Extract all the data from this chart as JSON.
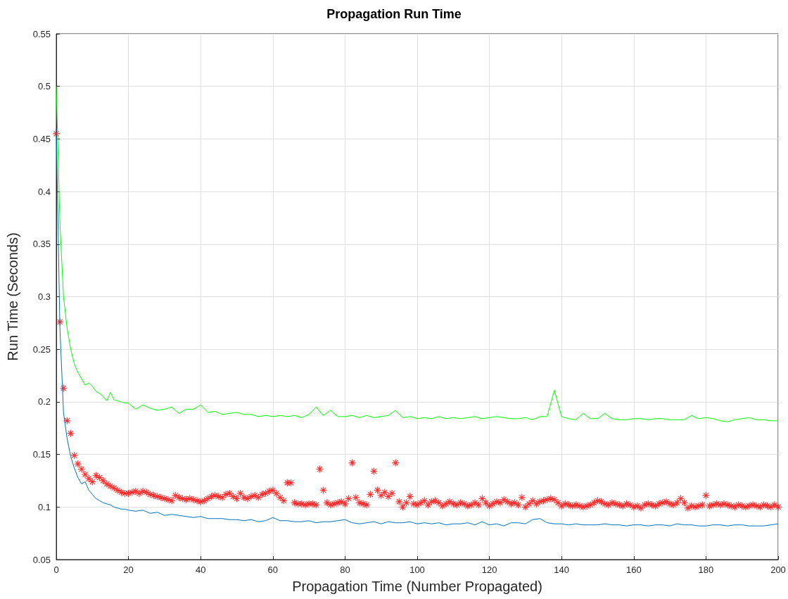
{
  "chart_data": {
    "type": "line",
    "title": "Propagation Run Time",
    "xlabel": "Propagation Time (Number Propagated)",
    "ylabel": "Run Time (Seconds)",
    "xlim": [
      0,
      200
    ],
    "xticks": [
      0,
      20,
      40,
      60,
      80,
      100,
      120,
      140,
      160,
      180,
      200
    ],
    "ylim": [
      0.05,
      0.55
    ],
    "yticks": [
      0.05,
      0.1,
      0.15,
      0.2,
      0.25,
      0.3,
      0.35,
      0.4,
      0.45,
      0.5,
      0.55
    ],
    "grid": true,
    "series": [
      {
        "type": "line",
        "color": "#00ff00",
        "marker": "none",
        "x": [
          0,
          1,
          2,
          3,
          4,
          5,
          6,
          7,
          8,
          9,
          10,
          11,
          12,
          13,
          14,
          15,
          16,
          17,
          18,
          19,
          20,
          22,
          24,
          26,
          28,
          30,
          32,
          34,
          36,
          38,
          40,
          42,
          44,
          46,
          48,
          50,
          52,
          54,
          56,
          58,
          60,
          62,
          64,
          66,
          68,
          70,
          72,
          74,
          76,
          78,
          80,
          82,
          84,
          86,
          88,
          90,
          92,
          94,
          96,
          98,
          100,
          102,
          104,
          106,
          108,
          110,
          112,
          114,
          116,
          118,
          120,
          122,
          124,
          126,
          128,
          130,
          132,
          134,
          136,
          138,
          140,
          142,
          144,
          146,
          148,
          150,
          152,
          154,
          156,
          158,
          160,
          162,
          164,
          166,
          168,
          170,
          172,
          174,
          176,
          178,
          180,
          182,
          184,
          186,
          188,
          190,
          192,
          194,
          196,
          198,
          200
        ],
        "values": [
          0.5,
          0.37,
          0.3,
          0.27,
          0.25,
          0.236,
          0.228,
          0.222,
          0.216,
          0.218,
          0.215,
          0.21,
          0.208,
          0.205,
          0.201,
          0.209,
          0.202,
          0.201,
          0.2,
          0.199,
          0.199,
          0.193,
          0.197,
          0.194,
          0.192,
          0.193,
          0.195,
          0.189,
          0.193,
          0.193,
          0.197,
          0.19,
          0.191,
          0.188,
          0.189,
          0.19,
          0.188,
          0.188,
          0.186,
          0.187,
          0.186,
          0.187,
          0.186,
          0.187,
          0.185,
          0.188,
          0.195,
          0.187,
          0.192,
          0.186,
          0.186,
          0.187,
          0.185,
          0.187,
          0.185,
          0.186,
          0.187,
          0.192,
          0.185,
          0.186,
          0.184,
          0.185,
          0.184,
          0.186,
          0.184,
          0.185,
          0.184,
          0.185,
          0.186,
          0.184,
          0.185,
          0.186,
          0.185,
          0.184,
          0.184,
          0.185,
          0.183,
          0.186,
          0.186,
          0.211,
          0.186,
          0.184,
          0.183,
          0.189,
          0.184,
          0.184,
          0.189,
          0.184,
          0.183,
          0.183,
          0.184,
          0.184,
          0.183,
          0.184,
          0.184,
          0.183,
          0.183,
          0.183,
          0.187,
          0.184,
          0.185,
          0.184,
          0.182,
          0.181,
          0.183,
          0.184,
          0.185,
          0.183,
          0.183,
          0.182,
          0.182
        ]
      },
      {
        "type": "line",
        "color": "#0072bd",
        "marker": "none",
        "x": [
          0,
          1,
          2,
          3,
          4,
          5,
          6,
          7,
          8,
          9,
          10,
          11,
          12,
          13,
          14,
          15,
          16,
          17,
          18,
          19,
          20,
          22,
          24,
          26,
          28,
          30,
          32,
          34,
          36,
          38,
          40,
          42,
          44,
          46,
          48,
          50,
          52,
          54,
          56,
          58,
          60,
          62,
          64,
          66,
          68,
          70,
          72,
          74,
          76,
          78,
          80,
          82,
          84,
          86,
          88,
          90,
          92,
          94,
          96,
          98,
          100,
          102,
          104,
          106,
          108,
          110,
          112,
          114,
          116,
          118,
          120,
          122,
          124,
          126,
          128,
          130,
          132,
          134,
          136,
          138,
          140,
          142,
          144,
          146,
          148,
          150,
          152,
          154,
          156,
          158,
          160,
          162,
          164,
          166,
          168,
          170,
          172,
          174,
          176,
          178,
          180,
          182,
          184,
          186,
          188,
          190,
          192,
          194,
          196,
          198,
          200
        ],
        "values": [
          0.46,
          0.27,
          0.19,
          0.165,
          0.148,
          0.137,
          0.128,
          0.122,
          0.124,
          0.116,
          0.112,
          0.108,
          0.106,
          0.104,
          0.103,
          0.102,
          0.1,
          0.099,
          0.098,
          0.098,
          0.097,
          0.096,
          0.097,
          0.094,
          0.095,
          0.092,
          0.093,
          0.092,
          0.091,
          0.09,
          0.091,
          0.089,
          0.089,
          0.089,
          0.088,
          0.088,
          0.087,
          0.088,
          0.086,
          0.087,
          0.09,
          0.087,
          0.087,
          0.086,
          0.086,
          0.087,
          0.085,
          0.086,
          0.086,
          0.087,
          0.088,
          0.085,
          0.084,
          0.085,
          0.086,
          0.084,
          0.086,
          0.085,
          0.085,
          0.086,
          0.084,
          0.085,
          0.084,
          0.085,
          0.083,
          0.084,
          0.084,
          0.085,
          0.083,
          0.086,
          0.083,
          0.084,
          0.082,
          0.085,
          0.085,
          0.084,
          0.088,
          0.089,
          0.085,
          0.084,
          0.084,
          0.083,
          0.084,
          0.083,
          0.083,
          0.083,
          0.084,
          0.083,
          0.083,
          0.082,
          0.083,
          0.083,
          0.082,
          0.083,
          0.083,
          0.082,
          0.084,
          0.083,
          0.083,
          0.082,
          0.082,
          0.083,
          0.083,
          0.082,
          0.083,
          0.083,
          0.082,
          0.082,
          0.082,
          0.083,
          0.084
        ]
      },
      {
        "type": "scatter",
        "color": "#ff0000",
        "marker": "star",
        "x": [
          0,
          1,
          2,
          3,
          4,
          5,
          6,
          7,
          8,
          9,
          10,
          11,
          12,
          13,
          14,
          15,
          16,
          17,
          18,
          19,
          20,
          21,
          22,
          23,
          24,
          25,
          26,
          27,
          28,
          29,
          30,
          31,
          32,
          33,
          34,
          35,
          36,
          37,
          38,
          39,
          40,
          41,
          42,
          43,
          44,
          45,
          46,
          47,
          48,
          49,
          50,
          51,
          52,
          53,
          54,
          55,
          56,
          57,
          58,
          59,
          60,
          61,
          62,
          63,
          64,
          65,
          66,
          67,
          68,
          69,
          70,
          71,
          72,
          73,
          74,
          75,
          76,
          77,
          78,
          79,
          80,
          81,
          82,
          83,
          84,
          85,
          86,
          87,
          88,
          89,
          90,
          91,
          92,
          93,
          94,
          95,
          96,
          97,
          98,
          99,
          100,
          101,
          102,
          103,
          104,
          105,
          106,
          107,
          108,
          109,
          110,
          111,
          112,
          113,
          114,
          115,
          116,
          117,
          118,
          119,
          120,
          121,
          122,
          123,
          124,
          125,
          126,
          127,
          128,
          129,
          130,
          131,
          132,
          133,
          134,
          135,
          136,
          137,
          138,
          139,
          140,
          141,
          142,
          143,
          144,
          145,
          146,
          147,
          148,
          149,
          150,
          151,
          152,
          153,
          154,
          155,
          156,
          157,
          158,
          159,
          160,
          161,
          162,
          163,
          164,
          165,
          166,
          167,
          168,
          169,
          170,
          171,
          172,
          173,
          174,
          175,
          176,
          177,
          178,
          179,
          180,
          181,
          182,
          183,
          184,
          185,
          186,
          187,
          188,
          189,
          190,
          191,
          192,
          193,
          194,
          195,
          196,
          197,
          198,
          199,
          200
        ],
        "values": [
          0.455,
          0.276,
          0.213,
          0.182,
          0.17,
          0.149,
          0.141,
          0.136,
          0.131,
          0.127,
          0.124,
          0.13,
          0.128,
          0.125,
          0.122,
          0.12,
          0.118,
          0.116,
          0.114,
          0.113,
          0.113,
          0.114,
          0.115,
          0.113,
          0.115,
          0.114,
          0.112,
          0.111,
          0.11,
          0.109,
          0.108,
          0.107,
          0.106,
          0.111,
          0.109,
          0.108,
          0.107,
          0.108,
          0.107,
          0.106,
          0.105,
          0.106,
          0.108,
          0.11,
          0.111,
          0.11,
          0.109,
          0.112,
          0.113,
          0.11,
          0.108,
          0.113,
          0.109,
          0.108,
          0.11,
          0.111,
          0.109,
          0.112,
          0.113,
          0.115,
          0.116,
          0.113,
          0.109,
          0.106,
          0.123,
          0.123,
          0.104,
          0.103,
          0.103,
          0.102,
          0.103,
          0.103,
          0.102,
          0.136,
          0.116,
          0.104,
          0.102,
          0.103,
          0.104,
          0.105,
          0.103,
          0.108,
          0.142,
          0.109,
          0.104,
          0.103,
          0.102,
          0.112,
          0.134,
          0.116,
          0.111,
          0.114,
          0.11,
          0.113,
          0.142,
          0.105,
          0.1,
          0.104,
          0.11,
          0.103,
          0.102,
          0.104,
          0.106,
          0.102,
          0.105,
          0.106,
          0.104,
          0.101,
          0.103,
          0.105,
          0.103,
          0.102,
          0.104,
          0.103,
          0.101,
          0.102,
          0.104,
          0.102,
          0.108,
          0.104,
          0.101,
          0.103,
          0.105,
          0.104,
          0.107,
          0.105,
          0.103,
          0.104,
          0.102,
          0.109,
          0.1,
          0.103,
          0.106,
          0.103,
          0.105,
          0.106,
          0.107,
          0.108,
          0.107,
          0.104,
          0.101,
          0.103,
          0.102,
          0.101,
          0.102,
          0.101,
          0.1,
          0.101,
          0.102,
          0.104,
          0.106,
          0.105,
          0.103,
          0.102,
          0.104,
          0.103,
          0.102,
          0.101,
          0.103,
          0.102,
          0.1,
          0.101,
          0.099,
          0.102,
          0.103,
          0.102,
          0.101,
          0.103,
          0.104,
          0.105,
          0.103,
          0.102,
          0.104,
          0.108,
          0.104,
          0.099,
          0.101,
          0.1,
          0.101,
          0.102,
          0.111,
          0.101,
          0.102,
          0.103,
          0.102,
          0.103,
          0.102,
          0.101,
          0.1,
          0.102,
          0.101,
          0.1,
          0.101,
          0.102,
          0.101,
          0.1,
          0.102,
          0.101,
          0.1,
          0.102,
          0.1
        ]
      }
    ]
  }
}
